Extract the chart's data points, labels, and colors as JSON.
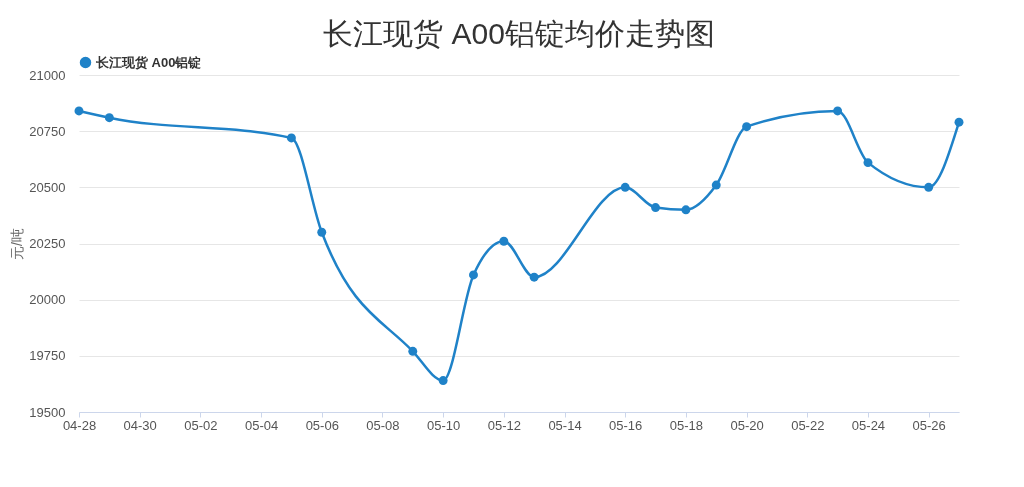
{
  "chart_data": {
    "type": "line",
    "title": "长江现货 A00铝锭均价走势图",
    "ylabel": "元/吨",
    "x": [
      "--04-28",
      "--04-29",
      "--05-05",
      "--05-06",
      "--05-09",
      "--05-10",
      "--05-11",
      "--05-12",
      "--05-13",
      "--05-16",
      "--05-17",
      "--05-18",
      "--05-19",
      "--05-20",
      "--05-23",
      "--05-24",
      "--05-26",
      "--05-27"
    ],
    "series": [
      {
        "name": "长江现货 A00铝锭",
        "color": "#1f82c8",
        "values": [
          20840,
          20810,
          20720,
          20300,
          19770,
          19640,
          20110,
          20260,
          20100,
          20500,
          20410,
          20400,
          20510,
          20770,
          20840,
          20610,
          20500,
          20790
        ]
      }
    ],
    "xlim": [
      "--04-28",
      "--05-27"
    ],
    "xticks": [
      {
        "value": "--04-28",
        "label": "04-28"
      },
      {
        "value": "--04-30",
        "label": "04-30"
      },
      {
        "value": "--05-02",
        "label": "05-02"
      },
      {
        "value": "--05-04",
        "label": "05-04"
      },
      {
        "value": "--05-06",
        "label": "05-06"
      },
      {
        "value": "--05-08",
        "label": "05-08"
      },
      {
        "value": "--05-10",
        "label": "05-10"
      },
      {
        "value": "--05-12",
        "label": "05-12"
      },
      {
        "value": "--05-14",
        "label": "05-14"
      },
      {
        "value": "--05-16",
        "label": "05-16"
      },
      {
        "value": "--05-18",
        "label": "05-18"
      },
      {
        "value": "--05-20",
        "label": "05-20"
      },
      {
        "value": "--05-22",
        "label": "05-22"
      },
      {
        "value": "--05-24",
        "label": "05-24"
      },
      {
        "value": "--05-26",
        "label": "05-26"
      }
    ],
    "ylim": [
      19500,
      21000
    ],
    "yticks": [
      19500,
      19750,
      20000,
      20250,
      20500,
      20750,
      21000
    ],
    "grid": "y",
    "legend": "top",
    "marker": "circle",
    "line_style": "solid"
  }
}
